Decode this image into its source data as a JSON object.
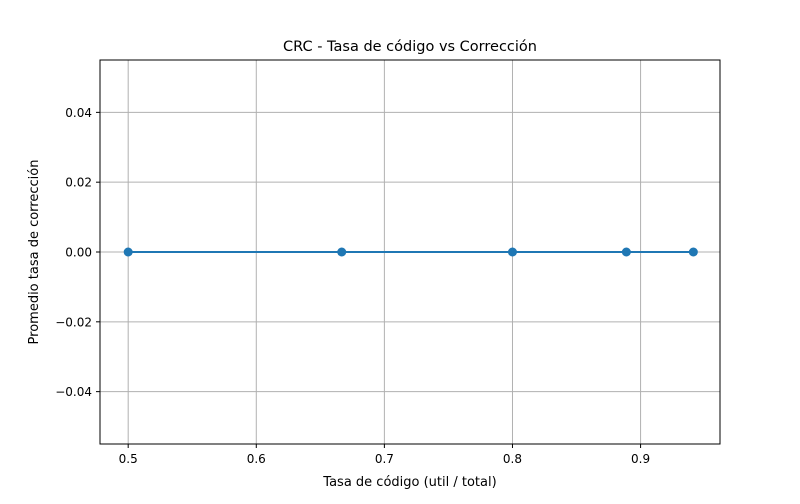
{
  "chart_data": {
    "type": "line",
    "title": "CRC - Tasa de código vs Corrección",
    "xlabel": "Tasa de código (util / total)",
    "ylabel": "Promedio tasa de corrección",
    "xlim": [
      0.478,
      0.962
    ],
    "ylim": [
      -0.055,
      0.055
    ],
    "xticks": [
      0.5,
      0.6,
      0.7,
      0.8,
      0.9
    ],
    "xtick_labels": [
      "0.5",
      "0.6",
      "0.7",
      "0.8",
      "0.9"
    ],
    "yticks": [
      -0.04,
      -0.02,
      0.0,
      0.02,
      0.04
    ],
    "ytick_labels": [
      "−0.04",
      "−0.02",
      "0.00",
      "0.02",
      "0.04"
    ],
    "grid": true,
    "series": [
      {
        "x": [
          0.5,
          0.6667,
          0.8,
          0.8889,
          0.9412
        ],
        "y": [
          0.0,
          0.0,
          0.0,
          0.0,
          0.0
        ],
        "color": "#1f77b4",
        "marker": "circle"
      }
    ]
  }
}
